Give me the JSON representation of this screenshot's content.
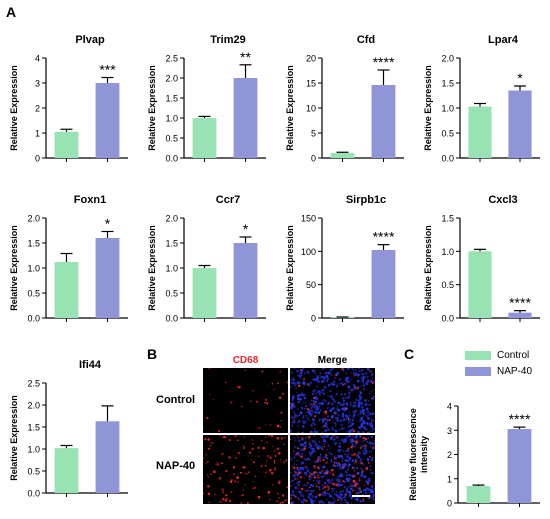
{
  "panels": {
    "a": "A",
    "b": "B",
    "c": "C"
  },
  "legend": {
    "items": [
      {
        "label": "Control",
        "color": "#99e2b4"
      },
      {
        "label": "NAP-40",
        "color": "#8f95d6"
      }
    ]
  },
  "images": {
    "col_labels": [
      "CD68",
      "Merge"
    ],
    "col_colors": [
      "#e8262d",
      "#000000"
    ],
    "row_labels": [
      "Control",
      "NAP-40"
    ]
  },
  "chart_data": [
    {
      "type": "bar",
      "title": "Plvap",
      "ylabel": "Relative Expression",
      "categories": [
        "Control",
        "NAP-40"
      ],
      "values": [
        1.05,
        3.0
      ],
      "errors": [
        0.1,
        0.22
      ],
      "yticks": [
        0,
        1,
        2,
        3,
        4
      ],
      "ylim": [
        0,
        4
      ],
      "significance": "***"
    },
    {
      "type": "bar",
      "title": "Trim29",
      "ylabel": "Relative Expression",
      "categories": [
        "Control",
        "NAP-40"
      ],
      "values": [
        1.0,
        2.0
      ],
      "errors": [
        0.04,
        0.33
      ],
      "yticks": [
        0.0,
        0.5,
        1.0,
        1.5,
        2.0,
        2.5
      ],
      "ylim": [
        0,
        2.5
      ],
      "significance": "**"
    },
    {
      "type": "bar",
      "title": "Cfd",
      "ylabel": "Relative Expression",
      "categories": [
        "Control",
        "NAP-40"
      ],
      "values": [
        1.0,
        14.6
      ],
      "errors": [
        0.15,
        3.0
      ],
      "yticks": [
        0,
        5,
        10,
        15,
        20
      ],
      "ylim": [
        0,
        20
      ],
      "significance": "****"
    },
    {
      "type": "bar",
      "title": "Lpar4",
      "ylabel": "Relative Expression",
      "categories": [
        "Control",
        "NAP-40"
      ],
      "values": [
        1.03,
        1.35
      ],
      "errors": [
        0.06,
        0.09
      ],
      "yticks": [
        0.0,
        0.5,
        1.0,
        1.5,
        2.0
      ],
      "ylim": [
        0,
        2.0
      ],
      "significance": "*"
    },
    {
      "type": "bar",
      "title": "Foxn1",
      "ylabel": "Relative Expression",
      "categories": [
        "Control",
        "NAP-40"
      ],
      "values": [
        1.12,
        1.6
      ],
      "errors": [
        0.17,
        0.13
      ],
      "yticks": [
        0.0,
        0.5,
        1.0,
        1.5,
        2.0
      ],
      "ylim": [
        0,
        2.0
      ],
      "significance": "*"
    },
    {
      "type": "bar",
      "title": "Ccr7",
      "ylabel": "Relative Expression",
      "categories": [
        "Control",
        "NAP-40"
      ],
      "values": [
        1.0,
        1.5
      ],
      "errors": [
        0.05,
        0.12
      ],
      "yticks": [
        0.0,
        0.5,
        1.0,
        1.5,
        2.0
      ],
      "ylim": [
        0,
        2.0
      ],
      "significance": "*"
    },
    {
      "type": "bar",
      "title": "Sirpb1c",
      "ylabel": "Relative Expression",
      "categories": [
        "Control",
        "NAP-40"
      ],
      "values": [
        1.0,
        102.0
      ],
      "errors": [
        0.5,
        8.0
      ],
      "yticks": [
        0,
        50,
        100,
        150
      ],
      "ylim": [
        0,
        150
      ],
      "significance": "****"
    },
    {
      "type": "bar",
      "title": "Cxcl3",
      "ylabel": "Relative Expression",
      "categories": [
        "Control",
        "NAP-40"
      ],
      "values": [
        1.0,
        0.08
      ],
      "errors": [
        0.03,
        0.03
      ],
      "yticks": [
        0.0,
        0.5,
        1.0,
        1.5
      ],
      "ylim": [
        0,
        1.5
      ],
      "significance": "****"
    },
    {
      "type": "bar",
      "title": "Ifi44",
      "ylabel": "Relative Expression",
      "categories": [
        "Control",
        "NAP-40"
      ],
      "values": [
        1.02,
        1.63
      ],
      "errors": [
        0.06,
        0.35
      ],
      "yticks": [
        0.0,
        0.5,
        1.0,
        1.5,
        2.0,
        2.5
      ],
      "ylim": [
        0,
        2.5
      ],
      "significance": ""
    },
    {
      "type": "bar",
      "title": "",
      "ylabel": "Relative fluorescence intensity",
      "categories": [
        "Control",
        "NAP-40"
      ],
      "values": [
        0.7,
        3.05
      ],
      "errors": [
        0.04,
        0.08
      ],
      "yticks": [
        0,
        1,
        2,
        3,
        4
      ],
      "ylim": [
        0,
        4
      ],
      "significance": "****"
    }
  ]
}
